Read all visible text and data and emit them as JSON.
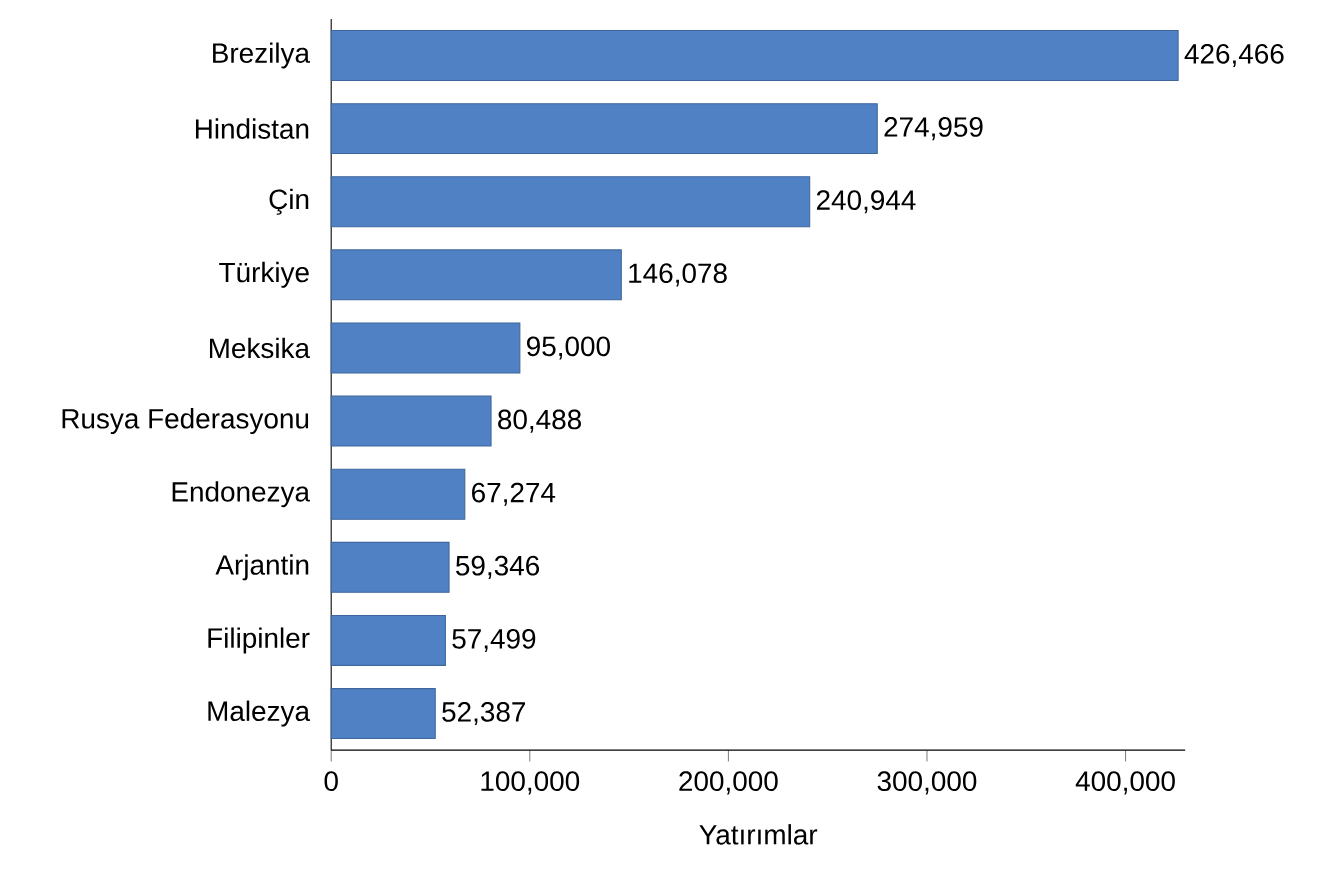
{
  "chart_data": {
    "type": "bar",
    "orientation": "horizontal",
    "xlabel": "Yatırımlar",
    "categories": [
      "Brezilya",
      "Hindistan",
      "Çin",
      "Türkiye",
      "Meksika",
      "Rusya Federasyonu",
      "Endonezya",
      "Arjantin",
      "Filipinler",
      "Malezya"
    ],
    "values": [
      426466,
      274959,
      240944,
      146078,
      95000,
      80488,
      67274,
      59346,
      57499,
      52387
    ],
    "value_labels": [
      "426,466",
      "274,959",
      "240,944",
      "146,078",
      "95,000",
      "80,488",
      "67,274",
      "59,346",
      "57,499",
      "52,387"
    ],
    "color": "#4f81c4",
    "xlim": [
      0,
      430000
    ],
    "xticks": [
      0,
      {
        "value": 100000,
        "label": "100,000"
      },
      {
        "value": 200000,
        "label": "200,000"
      },
      {
        "value": 300000,
        "label": "300,000"
      },
      {
        "value": 400000,
        "label": "400,000"
      }
    ],
    "grid": false
  }
}
